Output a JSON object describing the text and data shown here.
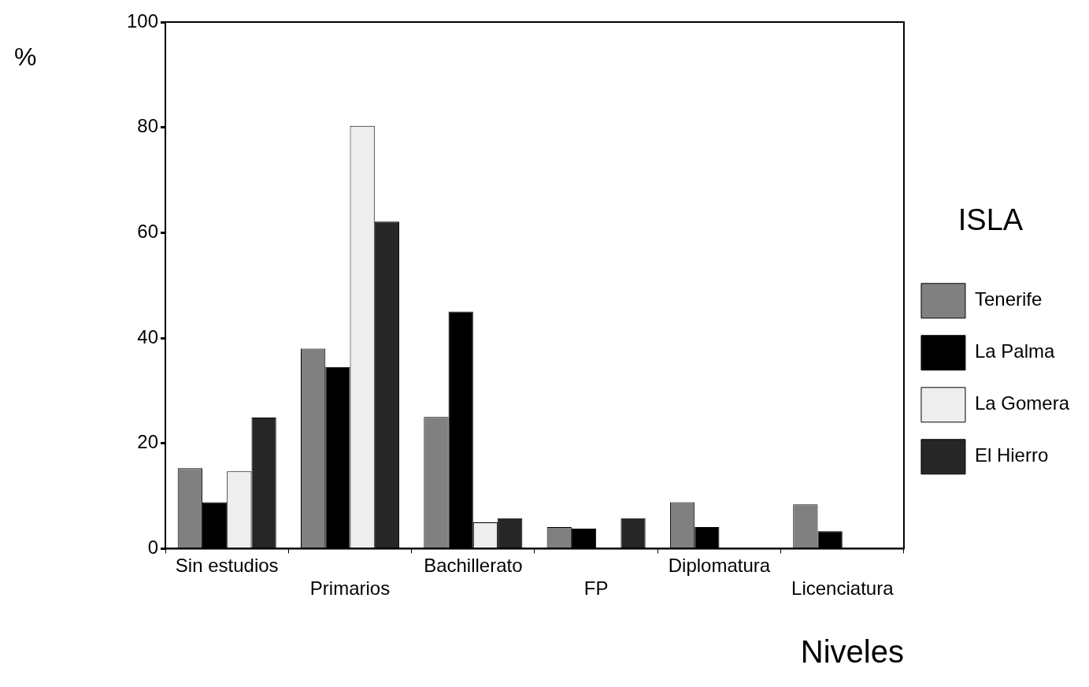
{
  "chart_data": {
    "type": "bar",
    "xlabel": "Niveles",
    "ylabel": "%",
    "legend_title": "ISLA",
    "categories": [
      "Sin estudios",
      "Primarios",
      "Bachillerato",
      "FP",
      "Diplomatura",
      "Licenciatura"
    ],
    "series": [
      {
        "name": "Tenerife",
        "color": "#808080",
        "values": [
          15.3,
          38,
          25,
          4.1,
          8.8,
          8.4
        ]
      },
      {
        "name": "La Palma",
        "color": "#000000",
        "values": [
          8.8,
          34.5,
          45,
          3.8,
          4.1,
          3.3
        ]
      },
      {
        "name": "La Gomera",
        "color": "#eeeeee",
        "values": [
          14.7,
          80.3,
          5,
          0,
          0,
          0
        ]
      },
      {
        "name": "El Hierro",
        "color": "#262626",
        "values": [
          24.9,
          62.1,
          5.8,
          5.8,
          0,
          0
        ]
      }
    ],
    "ylim": [
      0,
      100
    ],
    "yticks": [
      0,
      20,
      40,
      60,
      80,
      100
    ],
    "grid": false,
    "legend": "right"
  }
}
